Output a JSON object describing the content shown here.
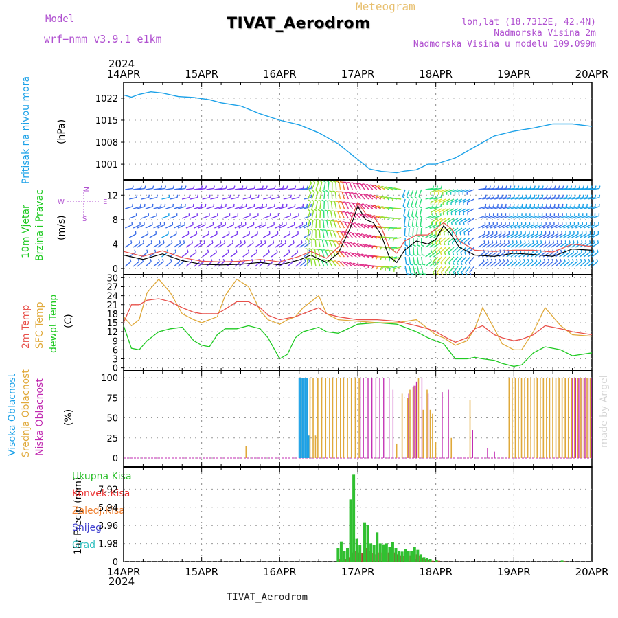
{
  "header": {
    "model_label": "Model",
    "model_value": "wrf−nmm_v3.9.1  e1km",
    "subtitle": "Meteogram",
    "title": "TIVAT_Aerodrom",
    "coords": "lon,lat (18.7312E, 42.4N)",
    "elevation": "Nadmorska Visina 2m",
    "model_elevation": "Nadmorska Visina u modelu 109.099m",
    "watermark": "made by Angel",
    "footer": "TIVAT_Aerodrom",
    "year_top": "2024",
    "year_bottom": "2024"
  },
  "colors": {
    "pressure": "#1ba1e8",
    "temp2m": "#e8504a",
    "sfc": "#e0a93a",
    "dew": "#1fca22",
    "wind_speed": "#000000",
    "gust": "#e8504a",
    "high_cloud": "#1ba1e8",
    "mid_cloud": "#e0a93a",
    "low_cloud": "#c028b0",
    "total_precip": "#30c030",
    "conv_precip": "#e83030",
    "frozen": "#f08030",
    "snow": "#4040d0",
    "hail": "#30c0c0",
    "magenta_text": "#b050d0"
  },
  "time_axis": {
    "labels": [
      "14APR",
      "15APR",
      "16APR",
      "17APR",
      "18APR",
      "19APR",
      "20APR"
    ]
  },
  "chart_data": [
    {
      "id": "pressure",
      "type": "line",
      "ylabel": "Pritisak na nivou mora",
      "unit": "(hPa)",
      "yticks": [
        "1001",
        "1008",
        "1015",
        "1022"
      ],
      "ylim": [
        996,
        1027
      ],
      "x_days": [
        0,
        0.1,
        0.2,
        0.35,
        0.5,
        0.7,
        0.9,
        1.1,
        1.25,
        1.5,
        1.75,
        2.0,
        2.25,
        2.5,
        2.75,
        2.9,
        3.0,
        3.15,
        3.3,
        3.5,
        3.6,
        3.75,
        3.9,
        4.0,
        4.25,
        4.5,
        4.75,
        5.0,
        5.25,
        5.5,
        5.75,
        6.0
      ],
      "values": [
        1023,
        1022.3,
        1023.2,
        1024,
        1023.6,
        1022.5,
        1022.2,
        1021.5,
        1020.5,
        1019.5,
        1017,
        1015,
        1013.5,
        1011,
        1007.5,
        1004.5,
        1002.5,
        999.5,
        998.7,
        998.3,
        998.8,
        999.2,
        1001,
        1001,
        1003,
        1006.5,
        1010,
        1011.5,
        1012.5,
        1013.8,
        1013.8,
        1013
      ],
      "series": [
        {
          "name": "Pritisak na nivou mora"
        }
      ]
    },
    {
      "id": "wind",
      "type": "line",
      "ylabel": "10m Vjetar",
      "ylabel2": "Brzina i Pravac",
      "unit": "(m/s)",
      "compass": [
        "N",
        "E",
        "S",
        "W"
      ],
      "yticks": [
        "0",
        "4",
        "8",
        "12"
      ],
      "ylim": [
        -1,
        14.5
      ],
      "speed_x": [
        0,
        0.25,
        0.5,
        0.75,
        1.0,
        1.25,
        1.5,
        1.75,
        2.0,
        2.25,
        2.4,
        2.6,
        2.75,
        2.9,
        3.0,
        3.1,
        3.2,
        3.3,
        3.4,
        3.5,
        3.6,
        3.75,
        3.9,
        4.0,
        4.1,
        4.2,
        4.3,
        4.5,
        4.75,
        5.0,
        5.25,
        5.5,
        5.75,
        6.0
      ],
      "speed": [
        2.2,
        1.5,
        2.4,
        1.3,
        0.7,
        0.6,
        0.7,
        1.0,
        0.6,
        1.4,
        2.2,
        1.0,
        2.5,
        6.5,
        10.2,
        8.0,
        7.5,
        5.5,
        2.0,
        1.0,
        3.0,
        4.5,
        4.0,
        4.8,
        7.0,
        5.5,
        3.5,
        2.2,
        2.0,
        2.5,
        2.3,
        2.0,
        3.2,
        3.0
      ],
      "gust": [
        2.8,
        2.0,
        2.9,
        1.8,
        1.2,
        1.1,
        1.2,
        1.5,
        1.1,
        2.0,
        2.8,
        1.7,
        3.5,
        7.5,
        10.8,
        9.0,
        8.5,
        6.8,
        3.5,
        2.5,
        4.5,
        5.5,
        5.5,
        6.5,
        7.5,
        6.5,
        4.5,
        3.0,
        2.8,
        3.0,
        3.0,
        2.7,
        4.0,
        3.6
      ],
      "series": [
        {
          "name": "Brzina"
        }
      ]
    },
    {
      "id": "temperature",
      "type": "line",
      "ylabel_1": "2m Temp",
      "ylabel_2": "SFC Temp",
      "ylabel_3": "dewpt Temp",
      "unit": "(C)",
      "yticks": [
        "0",
        "3",
        "6",
        "9",
        "12",
        "15",
        "18",
        "21",
        "24",
        "27",
        "30"
      ],
      "ylim": [
        -1,
        31
      ],
      "x_days": [
        0,
        0.1,
        0.2,
        0.3,
        0.45,
        0.6,
        0.75,
        0.9,
        1.0,
        1.1,
        1.2,
        1.3,
        1.45,
        1.6,
        1.75,
        1.85,
        2.0,
        2.1,
        2.2,
        2.3,
        2.5,
        2.6,
        2.75,
        3.0,
        3.25,
        3.5,
        3.75,
        3.9,
        4.0,
        4.1,
        4.25,
        4.4,
        4.5,
        4.6,
        4.75,
        4.85,
        5.0,
        5.1,
        5.25,
        5.4,
        5.6,
        5.75,
        6.0
      ],
      "t2m": [
        15,
        21,
        21,
        22.5,
        23,
        22,
        20,
        18.5,
        18,
        18,
        18,
        19.5,
        22,
        22,
        20,
        17.5,
        16,
        16.5,
        17,
        18,
        20,
        18,
        17,
        16,
        16,
        15.5,
        14,
        13,
        12,
        10.5,
        8.5,
        10,
        13,
        14,
        11,
        10,
        9,
        9.5,
        11,
        14,
        13,
        12,
        11
      ],
      "sfc": [
        17,
        14,
        16,
        25,
        29.5,
        25,
        18,
        16,
        15,
        16,
        17,
        24,
        29.5,
        27,
        19,
        16,
        14.5,
        16,
        17,
        20,
        24,
        18,
        16,
        15.5,
        15,
        15,
        16,
        13,
        11,
        10,
        7.5,
        9,
        13,
        20,
        13,
        8,
        6,
        6,
        12,
        20,
        14,
        11,
        10.5
      ],
      "dew": [
        14,
        6.5,
        6,
        9,
        12,
        13,
        13.5,
        9,
        7.5,
        7,
        11,
        13,
        13,
        14,
        13,
        10,
        3,
        4.5,
        10,
        12,
        13.5,
        12,
        11.5,
        14.5,
        15,
        14.5,
        12,
        10,
        9,
        8,
        3,
        3,
        3.5,
        3,
        2.5,
        1.5,
        0.5,
        1,
        5,
        7,
        6,
        4,
        5
      ],
      "series": [
        {
          "name": "2m Temp"
        },
        {
          "name": "SFC Temp"
        },
        {
          "name": "dewpt Temp"
        }
      ]
    },
    {
      "id": "clouds",
      "type": "bar",
      "ylabel_1": "Visoka Oblacnost",
      "ylabel_2": "Srednja Oblacnost",
      "ylabel_3": "Niska Oblacnost",
      "unit": "(%)",
      "yticks": [
        "0",
        "25",
        "50",
        "75",
        "100"
      ],
      "ylim": [
        0,
        100
      ],
      "series": [
        {
          "name": "Visoka Oblacnost"
        },
        {
          "name": "Srednja Oblacnost"
        },
        {
          "name": "Niska Oblacnost"
        }
      ],
      "bars": [
        {
          "x": 1.55,
          "mid": 15
        },
        {
          "x": 2.25,
          "high": 100,
          "mid": 100
        },
        {
          "x": 2.27,
          "high": 100,
          "mid": 100
        },
        {
          "x": 2.29,
          "high": 100,
          "mid": 100
        },
        {
          "x": 2.31,
          "high": 100
        },
        {
          "x": 2.33,
          "high": 100,
          "mid": 100
        },
        {
          "x": 2.35,
          "high": 100
        },
        {
          "x": 2.37,
          "high": 28,
          "mid": 100
        },
        {
          "x": 2.41,
          "mid": 100
        },
        {
          "x": 2.44,
          "mid": 28
        },
        {
          "x": 2.47,
          "mid": 100
        },
        {
          "x": 2.52,
          "mid": 100
        },
        {
          "x": 2.57,
          "mid": 100
        },
        {
          "x": 2.62,
          "mid": 100
        },
        {
          "x": 2.66,
          "mid": 100
        },
        {
          "x": 2.71,
          "mid": 100
        },
        {
          "x": 2.76,
          "mid": 100
        },
        {
          "x": 2.8,
          "mid": 100
        },
        {
          "x": 2.85,
          "mid": 100
        },
        {
          "x": 2.9,
          "mid": 100
        },
        {
          "x": 2.95,
          "mid": 100
        },
        {
          "x": 3.0,
          "mid": 100,
          "low": 100
        },
        {
          "x": 3.04,
          "low": 100
        },
        {
          "x": 3.1,
          "low": 100
        },
        {
          "x": 3.15,
          "low": 100
        },
        {
          "x": 3.2,
          "low": 100
        },
        {
          "x": 3.25,
          "low": 100
        },
        {
          "x": 3.3,
          "low": 100
        },
        {
          "x": 3.37,
          "low": 100
        },
        {
          "x": 3.42,
          "low": 85
        },
        {
          "x": 3.48,
          "mid": 18
        },
        {
          "x": 3.55,
          "mid": 80
        },
        {
          "x": 3.62,
          "mid": 75,
          "low": 80
        },
        {
          "x": 3.65,
          "mid": 85
        },
        {
          "x": 3.69,
          "mid": 88,
          "low": 90
        },
        {
          "x": 3.72,
          "mid": 90,
          "low": 95
        },
        {
          "x": 3.76,
          "mid": 100
        },
        {
          "x": 3.79,
          "low": 100
        },
        {
          "x": 3.82,
          "mid": 60
        },
        {
          "x": 3.87,
          "mid": 85,
          "low": 80
        },
        {
          "x": 3.91,
          "mid": 60
        },
        {
          "x": 3.94,
          "mid": 55
        },
        {
          "x": 3.98,
          "mid": 20
        },
        {
          "x": 4.05,
          "low": 82
        },
        {
          "x": 4.13,
          "low": 85
        },
        {
          "x": 4.18,
          "mid": 25
        },
        {
          "x": 4.42,
          "mid": 72
        },
        {
          "x": 4.44,
          "low": 35
        },
        {
          "x": 4.63,
          "low": 12
        },
        {
          "x": 4.72,
          "low": 8
        },
        {
          "x": 4.92,
          "mid": 100
        },
        {
          "x": 4.96,
          "mid": 100
        },
        {
          "x": 5.0,
          "mid": 100
        },
        {
          "x": 5.04,
          "mid": 100
        },
        {
          "x": 5.08,
          "mid": 100
        },
        {
          "x": 5.12,
          "mid": 100
        },
        {
          "x": 5.16,
          "mid": 100
        },
        {
          "x": 5.2,
          "mid": 100
        },
        {
          "x": 5.24,
          "mid": 100
        },
        {
          "x": 5.28,
          "mid": 100
        },
        {
          "x": 5.32,
          "mid": 100
        },
        {
          "x": 5.36,
          "mid": 100
        },
        {
          "x": 5.4,
          "mid": 100
        },
        {
          "x": 5.44,
          "mid": 100
        },
        {
          "x": 5.48,
          "mid": 100
        },
        {
          "x": 5.52,
          "mid": 100
        },
        {
          "x": 5.56,
          "mid": 100
        },
        {
          "x": 5.6,
          "mid": 100
        },
        {
          "x": 5.64,
          "mid": 100
        },
        {
          "x": 5.68,
          "mid": 100
        },
        {
          "x": 5.72,
          "mid": 100,
          "low": 100
        },
        {
          "x": 5.76,
          "mid": 100,
          "low": 100
        },
        {
          "x": 5.8,
          "mid": 100,
          "low": 100
        },
        {
          "x": 5.84,
          "mid": 100,
          "low": 100
        },
        {
          "x": 5.88,
          "mid": 100,
          "low": 100
        },
        {
          "x": 5.92,
          "mid": 100,
          "low": 100
        },
        {
          "x": 5.96,
          "mid": 100,
          "low": 100
        }
      ]
    },
    {
      "id": "precip",
      "type": "bar",
      "ylabel_1": "Ukupna Kisa",
      "ylabel_2": "Konvek.Kisa",
      "ylabel_3": "Zaledj.Kisa",
      "ylabel_4": "Snijeg",
      "ylabel_5": "Grad",
      "unit": "1hr Precip (mm)",
      "yticks": [
        "0",
        "1.98",
        "3.96",
        "5.94",
        "7.92"
      ],
      "ylim": [
        0,
        9.6
      ],
      "series": [
        {
          "name": "Ukupna Kisa"
        },
        {
          "name": "Konvek.Kisa"
        },
        {
          "name": "Zaledj.Kisa"
        },
        {
          "name": "Snijeg"
        },
        {
          "name": "Grad"
        }
      ],
      "bars": [
        {
          "x": 2.75,
          "total": 1.5,
          "conv": 0.3
        },
        {
          "x": 2.79,
          "total": 2.2,
          "conv": 1.2
        },
        {
          "x": 2.83,
          "total": 1.2,
          "conv": 0.3
        },
        {
          "x": 2.87,
          "total": 1.5,
          "conv": 0.5
        },
        {
          "x": 2.91,
          "total": 6.8,
          "conv": 1.0
        },
        {
          "x": 2.95,
          "total": 9.5,
          "conv": 1.2
        },
        {
          "x": 2.99,
          "total": 2.5,
          "conv": 1.0
        },
        {
          "x": 3.03,
          "total": 1.8,
          "conv": 0.9
        },
        {
          "x": 3.09,
          "total": 4.3,
          "conv": 1.5
        },
        {
          "x": 3.13,
          "total": 4.0,
          "conv": 1.2
        },
        {
          "x": 3.17,
          "total": 2.0,
          "conv": 0.9
        },
        {
          "x": 3.21,
          "total": 1.8,
          "conv": 0.8
        },
        {
          "x": 3.25,
          "total": 3.2,
          "conv": 1.0
        },
        {
          "x": 3.29,
          "total": 2.0,
          "conv": 1.0
        },
        {
          "x": 3.33,
          "total": 1.9,
          "conv": 1.0
        },
        {
          "x": 3.37,
          "total": 2.0,
          "conv": 1.0
        },
        {
          "x": 3.41,
          "total": 1.6,
          "conv": 0.8
        },
        {
          "x": 3.45,
          "total": 2.1,
          "conv": 1.0
        },
        {
          "x": 3.49,
          "total": 1.5,
          "conv": 0.8
        },
        {
          "x": 3.53,
          "total": 1.2,
          "conv": 0.7
        },
        {
          "x": 3.57,
          "total": 1.1,
          "conv": 0.6
        },
        {
          "x": 3.61,
          "total": 1.4,
          "conv": 0.8
        },
        {
          "x": 3.65,
          "total": 1.2,
          "conv": 0.7
        },
        {
          "x": 3.69,
          "total": 1.2,
          "conv": 0.8
        },
        {
          "x": 3.73,
          "total": 1.6,
          "conv": 0.8
        },
        {
          "x": 3.77,
          "total": 1.3,
          "conv": 0.7
        },
        {
          "x": 3.81,
          "total": 0.8,
          "conv": 0.4
        },
        {
          "x": 3.85,
          "total": 0.5,
          "conv": 0.3
        },
        {
          "x": 3.89,
          "total": 0.4,
          "conv": 0.2
        },
        {
          "x": 3.93,
          "total": 0.3,
          "conv": 0.1
        },
        {
          "x": 4.01,
          "total": 0.15,
          "conv": 0.1
        },
        {
          "x": 5.62,
          "total": 0.12,
          "conv": 0.05
        }
      ]
    }
  ]
}
